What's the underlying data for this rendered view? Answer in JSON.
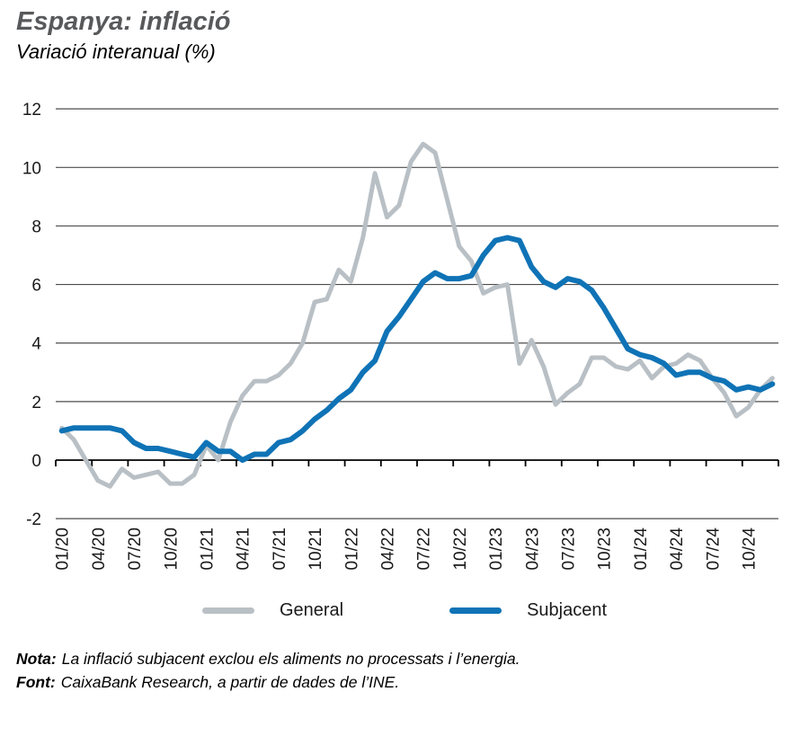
{
  "header": {
    "title": "Espanya: inflació",
    "subtitle": "Variació interanual (%)"
  },
  "chart_data": {
    "type": "line",
    "title": "Espanya: inflació",
    "subtitle": "Variació interanual (%)",
    "xlabel": "",
    "ylabel": "",
    "ylim": [
      -2,
      12
    ],
    "yticks": [
      12,
      10,
      8,
      6,
      4,
      2,
      0,
      -2
    ],
    "grid": true,
    "legend_position": "bottom",
    "x": [
      "01/20",
      "02/20",
      "03/20",
      "04/20",
      "05/20",
      "06/20",
      "07/20",
      "08/20",
      "09/20",
      "10/20",
      "11/20",
      "12/20",
      "01/21",
      "02/21",
      "03/21",
      "04/21",
      "05/21",
      "06/21",
      "07/21",
      "08/21",
      "09/21",
      "10/21",
      "11/21",
      "12/21",
      "01/22",
      "02/22",
      "03/22",
      "04/22",
      "05/22",
      "06/22",
      "07/22",
      "08/22",
      "09/22",
      "10/22",
      "11/22",
      "12/22",
      "01/23",
      "02/23",
      "03/23",
      "04/23",
      "05/23",
      "06/23",
      "07/23",
      "08/23",
      "09/23",
      "10/23",
      "11/23",
      "12/23",
      "01/24",
      "02/24",
      "03/24",
      "04/24",
      "05/24",
      "06/24",
      "07/24",
      "08/24",
      "09/24",
      "10/24",
      "11/24",
      "12/24"
    ],
    "x_tick_labels": [
      "01/20",
      "04/20",
      "07/20",
      "10/20",
      "01/21",
      "04/21",
      "07/21",
      "10/21",
      "01/22",
      "04/22",
      "07/22",
      "10/22",
      "01/23",
      "04/23",
      "07/23",
      "10/23",
      "01/24",
      "04/24",
      "07/24",
      "10/24"
    ],
    "series": [
      {
        "name": "General",
        "color": "#b9c0c5",
        "values": [
          1.1,
          0.7,
          0.0,
          -0.7,
          -0.9,
          -0.3,
          -0.6,
          -0.5,
          -0.4,
          -0.8,
          -0.8,
          -0.5,
          0.5,
          0.0,
          1.3,
          2.2,
          2.7,
          2.7,
          2.9,
          3.3,
          4.0,
          5.4,
          5.5,
          6.5,
          6.1,
          7.6,
          9.8,
          8.3,
          8.7,
          10.2,
          10.8,
          10.5,
          8.9,
          7.3,
          6.8,
          5.7,
          5.9,
          6.0,
          3.3,
          4.1,
          3.2,
          1.9,
          2.3,
          2.6,
          3.5,
          3.5,
          3.2,
          3.1,
          3.4,
          2.8,
          3.2,
          3.3,
          3.6,
          3.4,
          2.8,
          2.3,
          1.5,
          1.8,
          2.4,
          2.8
        ]
      },
      {
        "name": "Subjacent",
        "color": "#0f73b6",
        "values": [
          1.0,
          1.1,
          1.1,
          1.1,
          1.1,
          1.0,
          0.6,
          0.4,
          0.4,
          0.3,
          0.2,
          0.1,
          0.6,
          0.3,
          0.3,
          0.0,
          0.2,
          0.2,
          0.6,
          0.7,
          1.0,
          1.4,
          1.7,
          2.1,
          2.4,
          3.0,
          3.4,
          4.4,
          4.9,
          5.5,
          6.1,
          6.4,
          6.2,
          6.2,
          6.3,
          7.0,
          7.5,
          7.6,
          7.5,
          6.6,
          6.1,
          5.9,
          6.2,
          6.1,
          5.8,
          5.2,
          4.5,
          3.8,
          3.6,
          3.5,
          3.3,
          2.9,
          3.0,
          3.0,
          2.8,
          2.7,
          2.4,
          2.5,
          2.4,
          2.6
        ]
      }
    ]
  },
  "legend": {
    "items": [
      {
        "label": "General",
        "color": "#b9c0c5"
      },
      {
        "label": "Subjacent",
        "color": "#0f73b6"
      }
    ]
  },
  "notes": {
    "nota_label": "Nota:",
    "nota_text": "La inflació subjacent exclou els aliments no processats i l’energia.",
    "font_label": "Font:",
    "font_text": "CaixaBank Research, a partir de dades de l’INE."
  },
  "colors": {
    "title": "#58595b",
    "gridline": "#4d4d4d",
    "axis": "#000000",
    "tick_label": "#1a1a1a"
  }
}
